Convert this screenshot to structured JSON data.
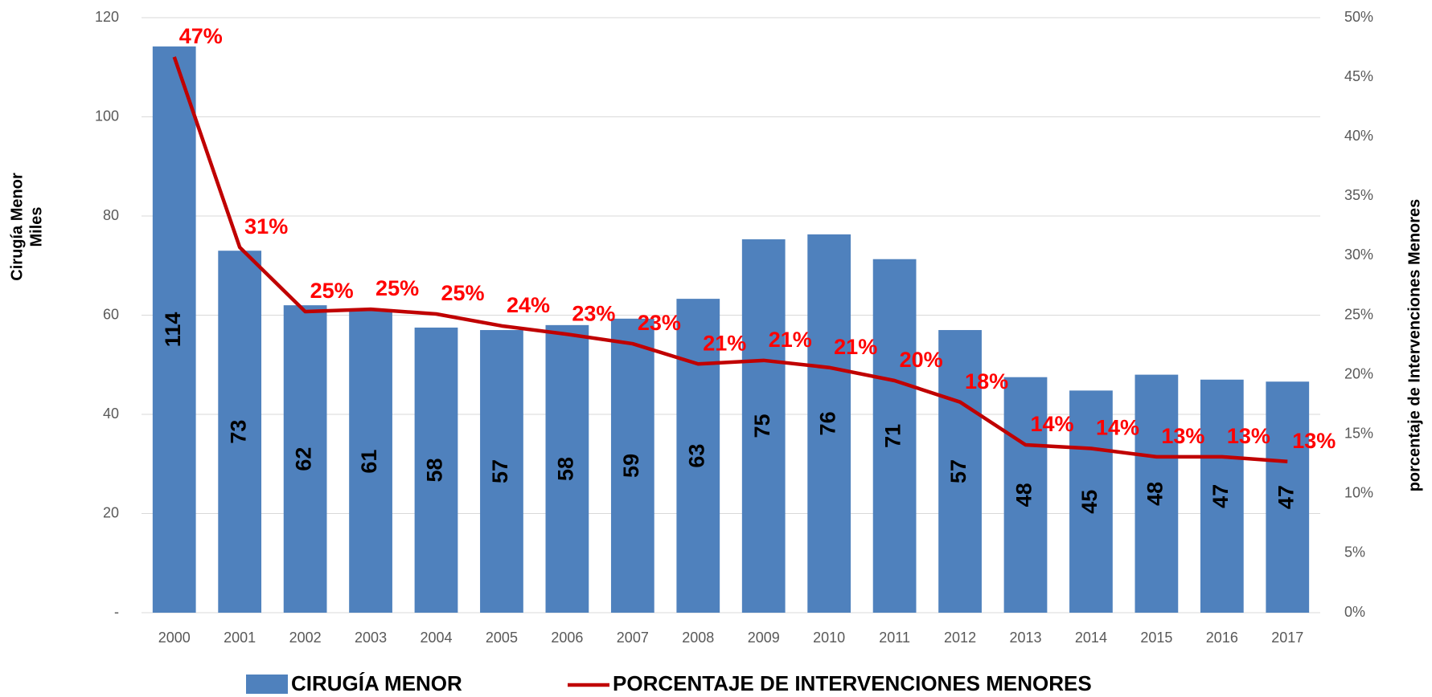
{
  "chart_data": {
    "type": "bar-line",
    "y_label": [
      "Cirugía Menor",
      "Miles"
    ],
    "y2_label": "porcentaje de Intervenciones Menores",
    "categories": [
      "2000",
      "2001",
      "2002",
      "2003",
      "2004",
      "2005",
      "2006",
      "2007",
      "2008",
      "2009",
      "2010",
      "2011",
      "2012",
      "2013",
      "2014",
      "2015",
      "2016",
      "2017"
    ],
    "series": [
      {
        "name": "CIRUGÍA MENOR",
        "type": "bar",
        "color": "#4f81bd",
        "values": [
          114.2,
          73,
          62,
          61,
          57.5,
          57,
          58,
          59.3,
          63.3,
          75.3,
          76.3,
          71.3,
          57,
          47.5,
          44.8,
          48,
          47,
          46.6
        ],
        "value_labels": [
          "114",
          "73",
          "62",
          "61",
          "58",
          "57",
          "58",
          "59",
          "63",
          "75",
          "76",
          "71",
          "57",
          "48",
          "45",
          "48",
          "47",
          "47"
        ]
      },
      {
        "name": "PORCENTAJE DE INTERVENCIONES MENORES",
        "type": "line",
        "axis": "y2",
        "color": "#c00000",
        "values": [
          46.7,
          30.7,
          25.3,
          25.5,
          25.1,
          24.1,
          23.4,
          22.6,
          20.9,
          21.2,
          20.6,
          19.5,
          17.7,
          14.1,
          13.8,
          13.1,
          13.1,
          12.7
        ],
        "value_labels": [
          "47%",
          "31%",
          "25%",
          "25%",
          "25%",
          "24%",
          "23%",
          "23%",
          "21%",
          "21%",
          "21%",
          "20%",
          "18%",
          "14%",
          "14%",
          "13%",
          "13%",
          "13%"
        ]
      }
    ],
    "ylim": [
      0,
      120
    ],
    "yticks": [
      {
        "value": 0,
        "label": "-"
      },
      20,
      40,
      60,
      80,
      100,
      120
    ],
    "y2lim": [
      0,
      50
    ],
    "y2ticks": [
      {
        "value": 0,
        "label": "0%"
      },
      {
        "value": 5,
        "label": "5%"
      },
      {
        "value": 10,
        "label": "10%"
      },
      {
        "value": 15,
        "label": "15%"
      },
      {
        "value": 20,
        "label": "20%"
      },
      {
        "value": 25,
        "label": "25%"
      },
      {
        "value": 30,
        "label": "30%"
      },
      {
        "value": 35,
        "label": "35%"
      },
      {
        "value": 40,
        "label": "40%"
      },
      {
        "value": 45,
        "label": "45%"
      },
      {
        "value": 50,
        "label": "50%"
      }
    ],
    "grid": true,
    "legend": "bottom"
  }
}
